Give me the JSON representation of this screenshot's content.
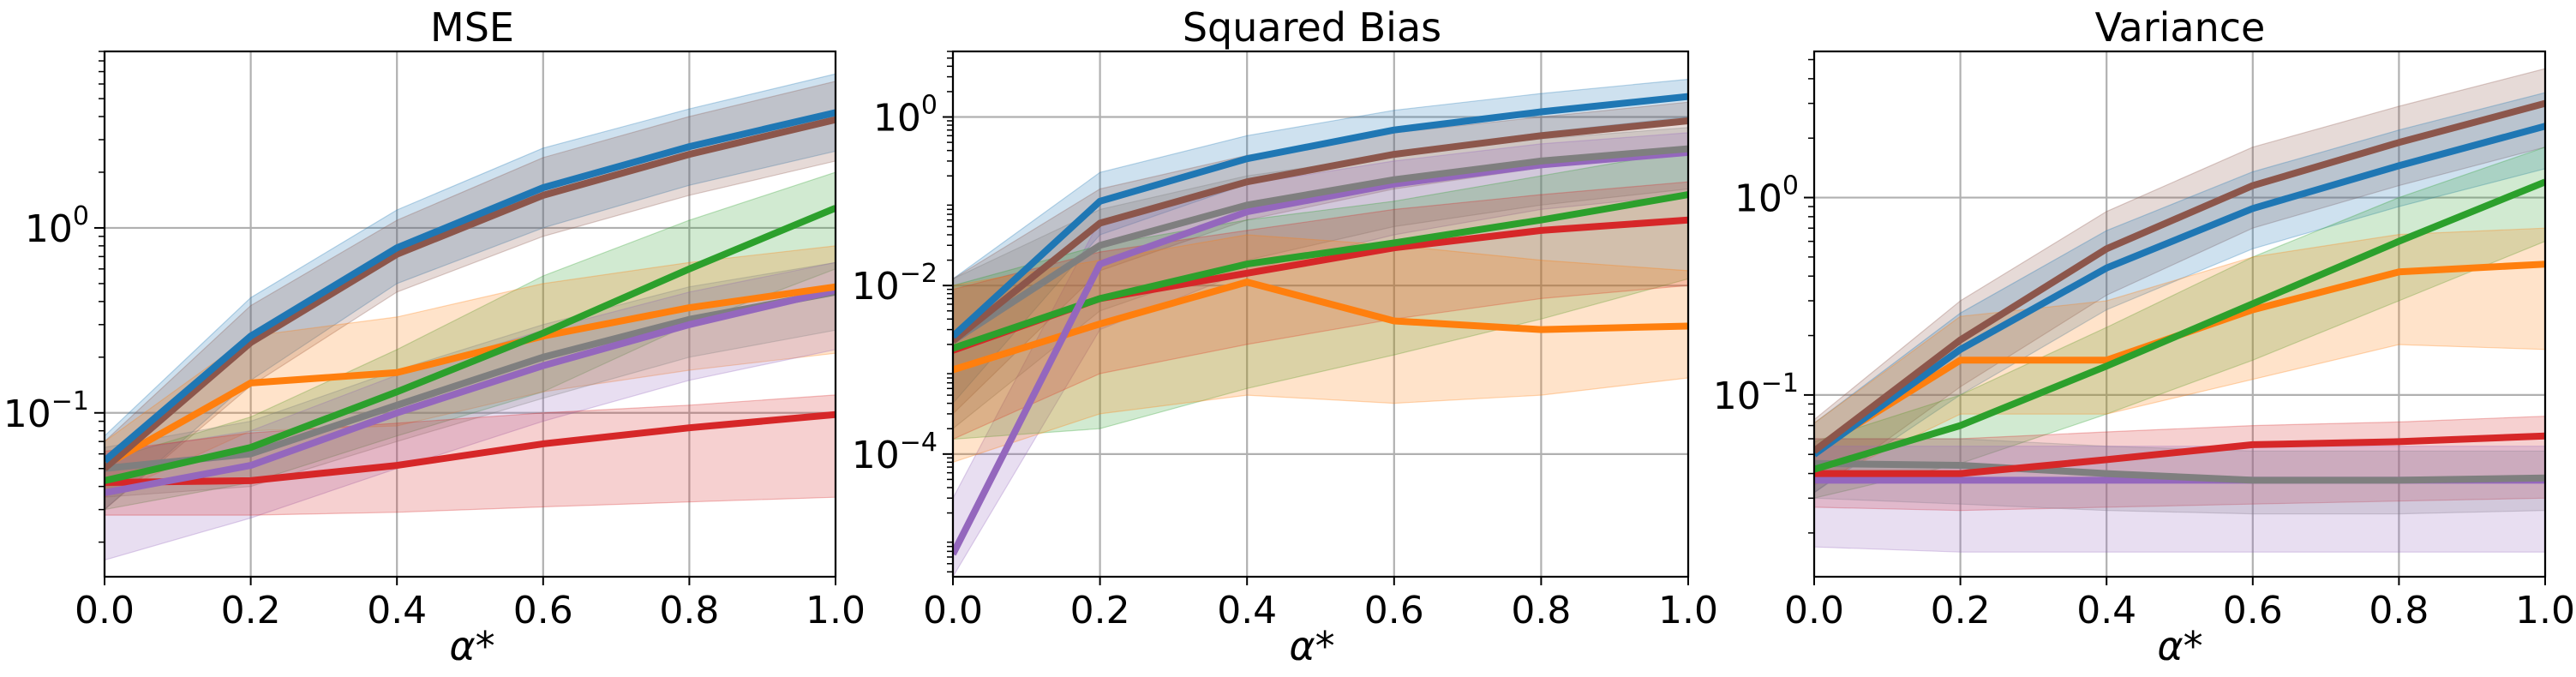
{
  "colors": {
    "blue": "#1f77b4",
    "orange": "#ff7f0e",
    "green": "#2ca02c",
    "red": "#d62728",
    "purple": "#9467bd",
    "brown": "#8c564b",
    "gray": "#7f7f7f",
    "grid": "#b0b0b0"
  },
  "chart_data": [
    {
      "type": "line",
      "title": "MSE",
      "xlabel": "α*",
      "ylabel": "",
      "yscale": "log",
      "xlim": [
        0.0,
        1.0
      ],
      "ylim": [
        0.013,
        9.0
      ],
      "x_ticks": [
        "0.0",
        "0.2",
        "0.4",
        "0.6",
        "0.8",
        "1.0"
      ],
      "y_ticks": [
        {
          "value": 1,
          "label": "10^0"
        },
        {
          "value": 0.1,
          "label": "10^-1"
        }
      ],
      "grid": true,
      "x": [
        0.0,
        0.2,
        0.4,
        0.6,
        0.8,
        1.0
      ],
      "series": [
        {
          "color": "blue",
          "values": [
            0.055,
            0.26,
            0.78,
            1.65,
            2.75,
            4.2
          ],
          "lower": [
            0.03,
            0.15,
            0.5,
            1.0,
            1.7,
            2.6
          ],
          "upper": [
            0.075,
            0.42,
            1.25,
            2.7,
            4.4,
            6.8
          ]
        },
        {
          "color": "brown",
          "values": [
            0.05,
            0.24,
            0.72,
            1.5,
            2.5,
            3.85
          ],
          "lower": [
            0.03,
            0.14,
            0.45,
            0.9,
            1.5,
            2.3
          ],
          "upper": [
            0.07,
            0.38,
            1.1,
            2.4,
            4.0,
            6.2
          ]
        },
        {
          "color": "green",
          "values": [
            0.043,
            0.065,
            0.13,
            0.27,
            0.6,
            1.28
          ],
          "lower": [
            0.03,
            0.042,
            0.075,
            0.13,
            0.3,
            0.6
          ],
          "upper": [
            0.055,
            0.095,
            0.22,
            0.55,
            1.1,
            2.0
          ]
        },
        {
          "color": "orange",
          "values": [
            0.052,
            0.145,
            0.165,
            0.26,
            0.37,
            0.48
          ],
          "lower": [
            0.035,
            0.08,
            0.085,
            0.13,
            0.17,
            0.21
          ],
          "upper": [
            0.07,
            0.26,
            0.33,
            0.5,
            0.65,
            0.8
          ]
        },
        {
          "color": "purple",
          "values": [
            0.037,
            0.052,
            0.1,
            0.18,
            0.3,
            0.46
          ],
          "lower": [
            0.016,
            0.027,
            0.05,
            0.09,
            0.15,
            0.22
          ],
          "upper": [
            0.06,
            0.08,
            0.16,
            0.28,
            0.45,
            0.65
          ]
        },
        {
          "color": "gray",
          "values": [
            0.05,
            0.06,
            0.11,
            0.2,
            0.32,
            0.45
          ],
          "lower": [
            0.035,
            0.04,
            0.07,
            0.12,
            0.2,
            0.28
          ],
          "upper": [
            0.065,
            0.09,
            0.17,
            0.3,
            0.48,
            0.65
          ]
        },
        {
          "color": "red",
          "values": [
            0.042,
            0.043,
            0.052,
            0.068,
            0.083,
            0.098
          ],
          "lower": [
            0.028,
            0.028,
            0.029,
            0.031,
            0.033,
            0.035
          ],
          "upper": [
            0.062,
            0.078,
            0.088,
            0.1,
            0.11,
            0.125
          ]
        }
      ]
    },
    {
      "type": "line",
      "title": "Squared Bias",
      "xlabel": "α*",
      "ylabel": "",
      "yscale": "log",
      "xlim": [
        0.0,
        1.0
      ],
      "ylim": [
        3.5e-06,
        6.0
      ],
      "x_ticks": [
        "0.0",
        "0.2",
        "0.4",
        "0.6",
        "0.8",
        "1.0"
      ],
      "y_ticks": [
        {
          "value": 1,
          "label": "10^0"
        },
        {
          "value": 0.01,
          "label": "10^-2"
        },
        {
          "value": 0.0001,
          "label": "10^-4"
        }
      ],
      "grid": true,
      "x": [
        0.0,
        0.2,
        0.4,
        0.6,
        0.8,
        1.0
      ],
      "series": [
        {
          "color": "blue",
          "values": [
            0.0025,
            0.1,
            0.32,
            0.7,
            1.15,
            1.75
          ],
          "lower": [
            0.0004,
            0.04,
            0.16,
            0.38,
            0.65,
            1.0
          ],
          "upper": [
            0.012,
            0.22,
            0.6,
            1.2,
            1.9,
            2.8
          ]
        },
        {
          "color": "brown",
          "values": [
            0.0022,
            0.055,
            0.17,
            0.36,
            0.6,
            0.9
          ],
          "lower": [
            0.0003,
            0.015,
            0.06,
            0.14,
            0.25,
            0.4
          ],
          "upper": [
            0.012,
            0.14,
            0.35,
            0.65,
            1.0,
            1.5
          ]
        },
        {
          "color": "gray",
          "values": [
            0.0022,
            0.03,
            0.09,
            0.18,
            0.3,
            0.42
          ],
          "lower": [
            0.0002,
            0.005,
            0.02,
            0.05,
            0.09,
            0.14
          ],
          "upper": [
            0.012,
            0.08,
            0.2,
            0.35,
            0.55,
            0.75
          ]
        },
        {
          "color": "purple",
          "values": [
            6.5e-06,
            0.018,
            0.075,
            0.16,
            0.27,
            0.38
          ],
          "lower": [
            3.5e-06,
            0.003,
            0.015,
            0.04,
            0.08,
            0.12
          ],
          "upper": [
            3e-05,
            0.06,
            0.16,
            0.3,
            0.48,
            0.65
          ]
        },
        {
          "color": "green",
          "values": [
            0.0018,
            0.007,
            0.018,
            0.032,
            0.06,
            0.12
          ],
          "lower": [
            0.00015,
            0.0002,
            0.0006,
            0.0015,
            0.004,
            0.012
          ],
          "upper": [
            0.01,
            0.03,
            0.06,
            0.1,
            0.2,
            0.4
          ]
        },
        {
          "color": "red",
          "values": [
            0.0017,
            0.007,
            0.014,
            0.028,
            0.045,
            0.06
          ],
          "lower": [
            0.00015,
            0.0009,
            0.002,
            0.004,
            0.007,
            0.01
          ],
          "upper": [
            0.009,
            0.025,
            0.045,
            0.08,
            0.12,
            0.17
          ]
        },
        {
          "color": "orange",
          "values": [
            0.001,
            0.0035,
            0.011,
            0.0038,
            0.003,
            0.0033
          ],
          "lower": [
            8e-05,
            0.0003,
            0.0005,
            0.0004,
            0.0005,
            0.0008
          ],
          "upper": [
            0.01,
            0.02,
            0.04,
            0.03,
            0.02,
            0.015
          ]
        }
      ]
    },
    {
      "type": "line",
      "title": "Variance",
      "xlabel": "α*",
      "ylabel": "",
      "yscale": "log",
      "xlim": [
        0.0,
        1.0
      ],
      "ylim": [
        0.012,
        5.5
      ],
      "x_ticks": [
        "0.0",
        "0.2",
        "0.4",
        "0.6",
        "0.8",
        "1.0"
      ],
      "y_ticks": [
        {
          "value": 1,
          "label": "10^0"
        },
        {
          "value": 0.1,
          "label": "10^-1"
        }
      ],
      "grid": true,
      "x": [
        0.0,
        0.2,
        0.4,
        0.6,
        0.8,
        1.0
      ],
      "series": [
        {
          "color": "brown",
          "values": [
            0.052,
            0.19,
            0.55,
            1.15,
            1.9,
            3.0
          ],
          "lower": [
            0.032,
            0.11,
            0.32,
            0.7,
            1.15,
            1.8
          ],
          "upper": [
            0.075,
            0.3,
            0.85,
            1.8,
            2.9,
            4.5
          ]
        },
        {
          "color": "blue",
          "values": [
            0.05,
            0.17,
            0.44,
            0.88,
            1.45,
            2.3
          ],
          "lower": [
            0.032,
            0.1,
            0.27,
            0.55,
            0.9,
            1.4
          ],
          "upper": [
            0.072,
            0.26,
            0.68,
            1.35,
            2.2,
            3.4
          ]
        },
        {
          "color": "green",
          "values": [
            0.042,
            0.07,
            0.14,
            0.29,
            0.6,
            1.2
          ],
          "lower": [
            0.03,
            0.045,
            0.08,
            0.15,
            0.3,
            0.6
          ],
          "upper": [
            0.058,
            0.1,
            0.22,
            0.5,
            1.0,
            1.8
          ]
        },
        {
          "color": "orange",
          "values": [
            0.052,
            0.15,
            0.15,
            0.27,
            0.42,
            0.46
          ],
          "lower": [
            0.035,
            0.08,
            0.08,
            0.12,
            0.18,
            0.17
          ],
          "upper": [
            0.072,
            0.25,
            0.3,
            0.5,
            0.65,
            0.7
          ]
        },
        {
          "color": "red",
          "values": [
            0.04,
            0.04,
            0.047,
            0.056,
            0.058,
            0.062
          ],
          "lower": [
            0.027,
            0.026,
            0.027,
            0.028,
            0.029,
            0.03
          ],
          "upper": [
            0.06,
            0.06,
            0.065,
            0.07,
            0.073,
            0.078
          ]
        },
        {
          "color": "gray",
          "values": [
            0.045,
            0.044,
            0.04,
            0.037,
            0.037,
            0.038
          ],
          "lower": [
            0.03,
            0.028,
            0.026,
            0.025,
            0.025,
            0.026
          ],
          "upper": [
            0.06,
            0.06,
            0.055,
            0.052,
            0.052,
            0.052
          ]
        },
        {
          "color": "purple",
          "values": [
            0.037,
            0.037,
            0.037,
            0.037,
            0.037,
            0.037
          ],
          "lower": [
            0.017,
            0.016,
            0.016,
            0.016,
            0.016,
            0.016
          ],
          "upper": [
            0.055,
            0.055,
            0.055,
            0.055,
            0.055,
            0.055
          ]
        }
      ]
    }
  ]
}
